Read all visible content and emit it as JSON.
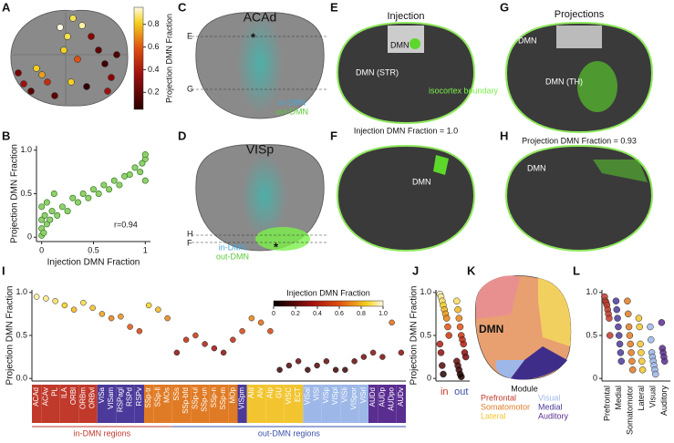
{
  "panel_labels": [
    "A",
    "B",
    "C",
    "D",
    "E",
    "F",
    "G",
    "H",
    "I",
    "J",
    "K",
    "L"
  ],
  "colorbar_A": {
    "label": "Projection DMN Fraction",
    "clim": [
      0.05,
      0.95
    ],
    "ticks": [
      0.2,
      0.4,
      0.6,
      0.8
    ]
  },
  "panel_C": {
    "title": "ACAd",
    "line_labels": [
      "E",
      "G"
    ],
    "legend": [
      "in-DMN",
      "out-DMN"
    ]
  },
  "panel_D": {
    "title": "VISp",
    "line_labels": [
      "H",
      "F"
    ],
    "legend": [
      "in-DMN",
      "out-DMN"
    ]
  },
  "panel_E": {
    "title": "Injection",
    "labels": [
      "DMN",
      "DMN (STR)",
      "isocortex boundary"
    ],
    "caption": "Injection DMN Fraction = 1.0"
  },
  "panel_F": {
    "labels": [
      "DMN"
    ]
  },
  "panel_G": {
    "title": "Projections",
    "labels": [
      "DMN",
      "DMN (TH)"
    ],
    "caption": "Projection DMN Fraction = 0.93"
  },
  "panel_H": {
    "labels": [
      "DMN"
    ]
  },
  "panel_K": {
    "label": "DMN",
    "legend_title": "Module",
    "modules": [
      {
        "name": "Prefrontal",
        "color": "#c0392b"
      },
      {
        "name": "Visual",
        "color": "#9db8e8"
      },
      {
        "name": "Somatomotor",
        "color": "#e07b25"
      },
      {
        "name": "Medial",
        "color": "#4b3a9a"
      },
      {
        "name": "Lateral",
        "color": "#f2c530"
      },
      {
        "name": "Auditory",
        "color": "#5a2d91"
      }
    ]
  },
  "chart_data": [
    {
      "type": "scatter",
      "xlabel": "Injection DMN Fraction",
      "ylabel": "Projection DMN Fraction",
      "annotation": "r=0.94",
      "color": "#8fd16a",
      "x": [
        0,
        0,
        0,
        0,
        0.02,
        0.03,
        0.05,
        0.05,
        0.08,
        0.1,
        0.12,
        0.15,
        0.2,
        0.25,
        0.3,
        0.35,
        0.4,
        0.45,
        0.5,
        0.55,
        0.6,
        0.65,
        0.7,
        0.75,
        0.8,
        0.85,
        0.9,
        0.95,
        0.97,
        1,
        1,
        1
      ],
      "y": [
        0.02,
        0.1,
        0.2,
        0.35,
        0.05,
        0.25,
        0.15,
        0.4,
        0.2,
        0.3,
        0.5,
        0.25,
        0.35,
        0.3,
        0.45,
        0.4,
        0.5,
        0.45,
        0.55,
        0.5,
        0.6,
        0.55,
        0.65,
        0.6,
        0.7,
        0.72,
        0.8,
        0.75,
        0.85,
        0.9,
        0.95,
        0.65
      ],
      "xlim": [
        -0.05,
        1.05
      ],
      "ylim": [
        -0.05,
        1.05
      ],
      "xticks": [
        0,
        0.5,
        1
      ],
      "yticks": [
        0,
        0.5,
        {
          "value": 1,
          "label": "1.0"
        }
      ]
    },
    {
      "type": "strip",
      "ylabel": "Projection DMN Fraction",
      "categories": [
        "ACAd",
        "ACAv",
        "PL",
        "ILA",
        "ORBl",
        "ORBm",
        "ORBvl",
        "VISa",
        "VISam",
        "RSPagl",
        "RSPd",
        "RSPv",
        "SSp-tr",
        "SSp-ll",
        "MOs",
        "SSs",
        "SSp-bfd",
        "SSp-ul",
        "SSp-un",
        "SSp-n",
        "SSp-m",
        "MOp",
        "VISpm",
        "AId",
        "AIv",
        "AIp",
        "GU",
        "VISC",
        "ECT",
        "VISal",
        "VISl",
        "VISp",
        "VISpl",
        "VISli",
        "VISpor",
        "VISrl",
        "AUDd",
        "AUDp",
        "AUDpo",
        "AUDv"
      ],
      "category_colors": [
        "#c0392b",
        "#c0392b",
        "#c0392b",
        "#c0392b",
        "#c0392b",
        "#c0392b",
        "#c0392b",
        "#4b3a9a",
        "#4b3a9a",
        "#4b3a9a",
        "#4b3a9a",
        "#4b3a9a",
        "#e07b25",
        "#e07b25",
        "#e07b25",
        "#e07b25",
        "#e07b25",
        "#e07b25",
        "#e07b25",
        "#e07b25",
        "#e07b25",
        "#e07b25",
        "#4b3a9a",
        "#f2c530",
        "#f2c530",
        "#f2c530",
        "#f2c530",
        "#f2c530",
        "#f2c530",
        "#9db8e8",
        "#9db8e8",
        "#9db8e8",
        "#9db8e8",
        "#9db8e8",
        "#9db8e8",
        "#9db8e8",
        "#5a2d91",
        "#5a2d91",
        "#5a2d91",
        "#5a2d91"
      ],
      "values": [
        0.95,
        0.93,
        0.9,
        0.85,
        0.8,
        0.88,
        0.82,
        0.75,
        0.7,
        0.72,
        0.6,
        0.55,
        0.85,
        0.8,
        0.7,
        0.3,
        0.45,
        0.5,
        0.4,
        0.35,
        0.3,
        0.45,
        0.55,
        0.7,
        0.65,
        0.55,
        0.1,
        0.15,
        0.2,
        0.1,
        0.15,
        0.2,
        0.1,
        0.1,
        0.2,
        0.25,
        0.3,
        0.25,
        0.65,
        0.3
      ],
      "groups": [
        {
          "name": "in-DMN regions",
          "from": "ACAd",
          "to": "MOs",
          "color": "#c0392b"
        },
        {
          "name": "out-DMN regions",
          "from": "SSs",
          "to": "AUDv",
          "color": "#3a4fa8"
        }
      ],
      "colorbar": {
        "title": "Injection DMN Fraction",
        "ticks": [
          0,
          0.2,
          0.4,
          0.6,
          0.8,
          {
            "value": 1,
            "label": "1.0"
          }
        ]
      },
      "ylim": [
        -0.03,
        1.03
      ],
      "yticks": [
        {
          "value": 0,
          "label": "0.0"
        },
        0.5,
        {
          "value": 1,
          "label": "1.0"
        }
      ]
    },
    {
      "type": "strip",
      "ylabel": "Projection DMN Fraction",
      "categories": [
        "in",
        "out"
      ],
      "category_colors": [
        "#c0392b",
        "#3a4fa8"
      ],
      "values": [
        [
          0.98,
          0.95,
          0.9,
          0.85,
          0.8,
          0.75,
          0.7,
          0.6,
          0.5,
          0.4,
          0.3,
          0.15,
          0.05
        ],
        [
          0.9,
          0.8,
          0.7,
          0.6,
          0.5,
          0.45,
          0.4,
          0.3,
          0.25,
          0.2,
          0.15,
          0.1,
          0.05,
          0.02
        ]
      ],
      "ylim": [
        -0.03,
        1.03
      ],
      "yticks": [
        0,
        0.5,
        {
          "value": 1,
          "label": "1.0"
        }
      ]
    },
    {
      "type": "strip",
      "categories": [
        "Prefrontal",
        "Medial",
        "Somatomotor",
        "Lateral",
        "Visual",
        "Auditory"
      ],
      "color_by_category": true,
      "category_colors": [
        "#c0392b",
        "#4b3a9a",
        "#e07b25",
        "#f2c530",
        "#9db8e8",
        "#5a2d91"
      ],
      "values": [
        [
          0.95,
          0.9,
          0.88,
          0.85,
          0.8,
          0.75,
          0.7,
          0.5
        ],
        [
          0.9,
          0.8,
          0.7,
          0.6,
          0.5,
          0.4,
          0.3,
          0.2
        ],
        [
          0.9,
          0.75,
          0.6,
          0.5,
          0.4,
          0.3,
          0.2,
          0.1
        ],
        [
          0.7,
          0.6,
          0.4,
          0.3,
          0.2,
          0.1
        ],
        [
          0.6,
          0.45,
          0.3,
          0.25,
          0.2,
          0.15,
          0.1,
          0.05
        ],
        [
          0.65,
          0.35,
          0.3,
          0.25,
          0.2
        ]
      ],
      "ylim": [
        -0.03,
        1.03
      ],
      "yticks": [
        0,
        0.5,
        {
          "value": 1,
          "label": "1.0"
        }
      ]
    }
  ]
}
